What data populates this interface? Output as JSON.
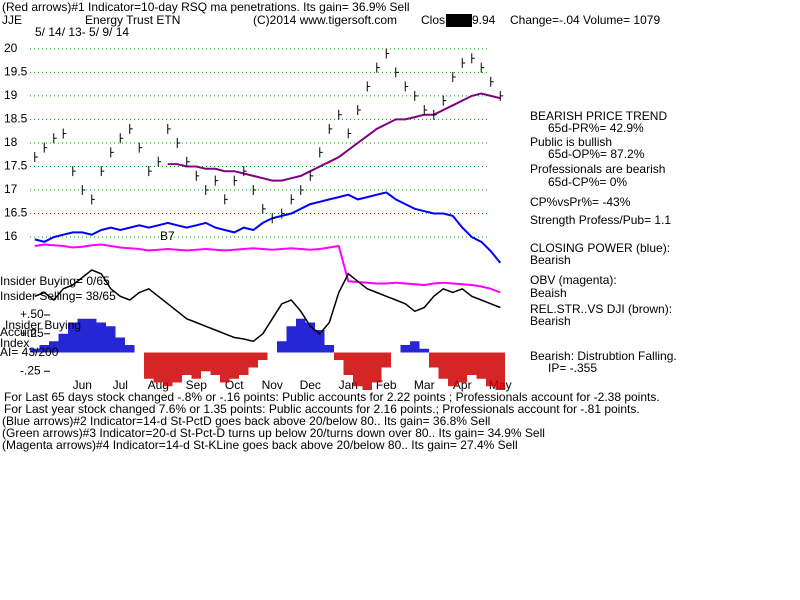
{
  "header": {
    "line1": "(Red arrows)#1 Indicator=10-day RSQ ma penetrations.  Its gain= 36.9% Sell",
    "symbol": "JJE",
    "name": "Energy Trust ETN",
    "copyright": "(C)2014 www.tigersoft.com",
    "close_prefix": "Clos",
    "close_value": "9.94",
    "change": "Change=-.04  Volume= 1079",
    "date_range": "5/ 14/ 13-  5/ 9/ 14"
  },
  "side_panel": [
    "BEARISH PRICE TREND",
    "65d-PR%= 42.9%",
    "Public is bullish",
    "65d-OP%= 87.2%",
    "Professionals are bearish",
    "65d-CP%= 0%",
    "CP%vsPr%= -43%",
    "Strength Profess/Pub= 1.1",
    "CLOSING POWER (blue):",
    "Bearish",
    "OBV (magenta):",
    "Beaish",
    "REL.STR..VS DJI (brown):",
    "Bearish",
    "Bearish:  Distrubtion Falling.",
    "IP= -.355"
  ],
  "left_notes": [
    "Insider Buying= 0/65",
    "Insider Selling= 38/65",
    "Insider Buying",
    "Accum",
    "Index",
    "AI= 43/200",
    "B7"
  ],
  "footer": [
    "For Last 65 days stock changed -.8% or -.16 points:  Public accounts for  2.22 points ;  Professionals account for -2.38 points.",
    "For Last year stock changed  7.6% or  1.35 points:  Public accounts for  2.16 points.;  Professionals account for -.81 points.",
    "(Blue arrows)#2 Indicator=14-d St-PctD goes back above 20/below 80.. Its gain= 36.8% Sell",
    "(Green arrows)#3 Indicator=20-d St-Pct-D turns up below 20/turns down over 80.. Its gain= 34.9% Sell",
    "(Magenta arrows)#4 Indicator=14-d St-KLine goes back above 20/below 80.. Its gain= 27.4% Sell"
  ],
  "chart_data": {
    "type": "line",
    "categories": [
      null,
      null,
      null,
      null,
      null,
      "Jun",
      null,
      null,
      null,
      "Jul",
      null,
      null,
      null,
      "Aug",
      null,
      null,
      null,
      "Sep",
      null,
      null,
      null,
      "Oct",
      null,
      null,
      null,
      "Nov",
      null,
      null,
      null,
      "Dec",
      null,
      null,
      null,
      "Jan",
      null,
      null,
      null,
      "Feb",
      null,
      null,
      null,
      "Mar",
      null,
      null,
      null,
      "Apr",
      null,
      null,
      null,
      "May"
    ],
    "ylim": [
      15.3,
      20.4
    ],
    "yticks": [
      20,
      19.5,
      19,
      18.5,
      18,
      17.5,
      17,
      16.5,
      16
    ],
    "grid": true,
    "grid_color": "#009900",
    "y2lim": [
      -0.5,
      1.7
    ],
    "y2ticks": [
      {
        "value": 0.5,
        "label": "+.50"
      },
      {
        "value": 0.25,
        "label": "+.25"
      },
      {
        "value": -0.25,
        "label": "-.25"
      }
    ],
    "series": [
      {
        "name": "Price",
        "style": "bars",
        "color": "#000000",
        "values": [
          17.7,
          17.9,
          18.1,
          18.2,
          17.4,
          17.0,
          16.8,
          17.4,
          17.8,
          18.1,
          18.3,
          17.9,
          17.4,
          17.6,
          18.3,
          18.0,
          17.6,
          17.3,
          17.0,
          17.2,
          16.8,
          17.2,
          17.4,
          17.0,
          16.6,
          16.4,
          16.5,
          16.8,
          17.0,
          17.3,
          17.8,
          18.3,
          18.6,
          18.2,
          18.7,
          19.2,
          19.6,
          19.9,
          19.5,
          19.2,
          19.0,
          18.7,
          18.6,
          18.9,
          19.4,
          19.7,
          19.8,
          19.6,
          19.3,
          19.0
        ]
      },
      {
        "name": "Moving Average",
        "style": "line",
        "color": "#800080",
        "values": [
          null,
          null,
          null,
          null,
          null,
          null,
          null,
          null,
          null,
          null,
          null,
          null,
          null,
          null,
          17.55,
          17.55,
          17.5,
          17.5,
          17.45,
          17.45,
          17.4,
          17.4,
          17.35,
          17.3,
          17.25,
          17.2,
          17.2,
          17.25,
          17.3,
          17.4,
          17.5,
          17.6,
          17.7,
          17.85,
          18.0,
          18.15,
          18.3,
          18.4,
          18.5,
          18.5,
          18.55,
          18.6,
          18.6,
          18.7,
          18.8,
          18.9,
          19.0,
          19.05,
          19.0,
          18.95
        ]
      },
      {
        "name": "Closing Power",
        "style": "line",
        "color": "#0000ff",
        "values": [
          15.95,
          15.9,
          16.0,
          16.05,
          16.1,
          16.1,
          16.05,
          16.15,
          16.2,
          16.15,
          16.2,
          16.25,
          16.2,
          16.25,
          16.3,
          16.25,
          16.2,
          16.25,
          16.3,
          16.2,
          16.15,
          16.1,
          16.2,
          16.15,
          16.3,
          16.4,
          16.45,
          16.5,
          16.6,
          16.7,
          16.75,
          16.8,
          16.85,
          16.9,
          16.8,
          16.85,
          16.9,
          16.95,
          16.8,
          16.7,
          16.6,
          16.55,
          16.5,
          16.5,
          16.45,
          16.2,
          16.0,
          15.9,
          15.7,
          15.45
        ]
      },
      {
        "name": "OBV",
        "style": "line",
        "color": "#ff00ff",
        "axis": "y2",
        "values": [
          1.42,
          1.44,
          1.43,
          1.42,
          1.4,
          1.41,
          1.43,
          1.44,
          1.42,
          1.4,
          1.39,
          1.38,
          1.36,
          1.37,
          1.38,
          1.37,
          1.36,
          1.37,
          1.38,
          1.37,
          1.36,
          1.37,
          1.38,
          1.39,
          1.38,
          1.37,
          1.38,
          1.39,
          1.38,
          1.37,
          1.38,
          1.4,
          1.42,
          0.95,
          0.94,
          0.93,
          0.92,
          0.92,
          0.93,
          0.92,
          0.91,
          0.9,
          0.92,
          0.93,
          0.92,
          0.91,
          0.9,
          0.88,
          0.85,
          0.8
        ]
      },
      {
        "name": "Rel. Strength",
        "style": "line",
        "color": "#000000",
        "axis": "y2",
        "values": [
          0.75,
          0.8,
          0.7,
          0.85,
          0.9,
          1.0,
          1.1,
          1.05,
          0.85,
          0.75,
          0.7,
          0.8,
          0.85,
          0.75,
          0.65,
          0.55,
          0.45,
          0.4,
          0.35,
          0.3,
          0.25,
          0.2,
          0.18,
          0.15,
          0.25,
          0.45,
          0.65,
          0.7,
          0.55,
          0.35,
          0.25,
          0.4,
          0.8,
          1.05,
          0.95,
          0.85,
          0.8,
          0.75,
          0.7,
          0.65,
          0.55,
          0.6,
          0.75,
          0.85,
          0.8,
          0.85,
          0.75,
          0.7,
          0.65,
          0.6
        ]
      },
      {
        "name": "Accum Index",
        "style": "histogram",
        "color": "#0000cc",
        "negative_color": "#cc0000",
        "axis": "y2",
        "values": [
          0.05,
          0.1,
          0.15,
          0.25,
          0.4,
          0.45,
          0.45,
          0.4,
          0.35,
          0.2,
          0.1,
          0.0,
          -0.35,
          -0.4,
          -0.45,
          -0.4,
          -0.3,
          -0.35,
          -0.25,
          -0.3,
          -0.4,
          -0.35,
          -0.3,
          -0.2,
          -0.1,
          0.0,
          0.15,
          0.35,
          0.45,
          0.4,
          0.3,
          0.1,
          -0.1,
          -0.3,
          -0.45,
          -0.5,
          -0.4,
          -0.2,
          0.0,
          0.1,
          0.15,
          0.05,
          -0.2,
          -0.35,
          -0.45,
          -0.4,
          -0.3,
          -0.35,
          -0.45,
          -0.5
        ]
      }
    ]
  }
}
